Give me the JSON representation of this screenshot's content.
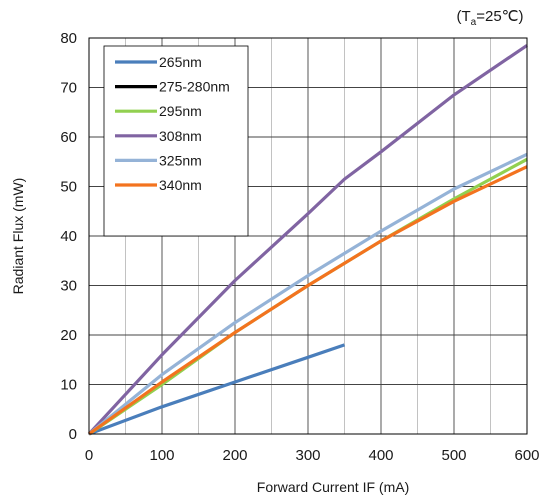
{
  "condition": {
    "prefix": "(T",
    "subscript": "a",
    "suffix": "=25℃)"
  },
  "chart_data": {
    "type": "line",
    "title": "",
    "xlabel": "Forward Current IF (mA)",
    "ylabel": "Radiant Flux (mW)",
    "xlim": [
      0,
      600
    ],
    "ylim": [
      0,
      80
    ],
    "x_ticks": [
      "0",
      "100",
      "200",
      "300",
      "400",
      "500",
      "600"
    ],
    "y_ticks": [
      "0",
      "10",
      "20",
      "30",
      "40",
      "50",
      "60",
      "70",
      "80"
    ],
    "grid": true,
    "legend_position": "top-left",
    "series": [
      {
        "name": "265nm",
        "color": "#4a7ebb",
        "x": [
          0,
          100,
          200,
          300,
          350
        ],
        "y": [
          0,
          5.5,
          10.5,
          15.5,
          18
        ]
      },
      {
        "name": "275-280nm",
        "color": "#000000",
        "x": [],
        "y": []
      },
      {
        "name": "295nm",
        "color": "#92d050",
        "x": [
          0,
          100,
          200,
          300,
          400,
          500,
          600
        ],
        "y": [
          0,
          10,
          20.5,
          30,
          39,
          47.5,
          55.5
        ]
      },
      {
        "name": "308nm",
        "color": "#8064a2",
        "x": [
          0,
          100,
          200,
          300,
          350,
          400,
          500,
          600
        ],
        "y": [
          0,
          16,
          31,
          44.5,
          51.5,
          57,
          68.5,
          78.5
        ]
      },
      {
        "name": "325nm",
        "color": "#95b3d7",
        "x": [
          0,
          100,
          200,
          300,
          400,
          500,
          600
        ],
        "y": [
          0,
          12,
          22.5,
          32,
          41,
          49.5,
          56.5
        ]
      },
      {
        "name": "340nm",
        "color": "#f3731f",
        "x": [
          0,
          100,
          200,
          300,
          400,
          500,
          600
        ],
        "y": [
          0,
          10.5,
          20.5,
          30,
          39,
          47,
          54
        ]
      }
    ]
  }
}
